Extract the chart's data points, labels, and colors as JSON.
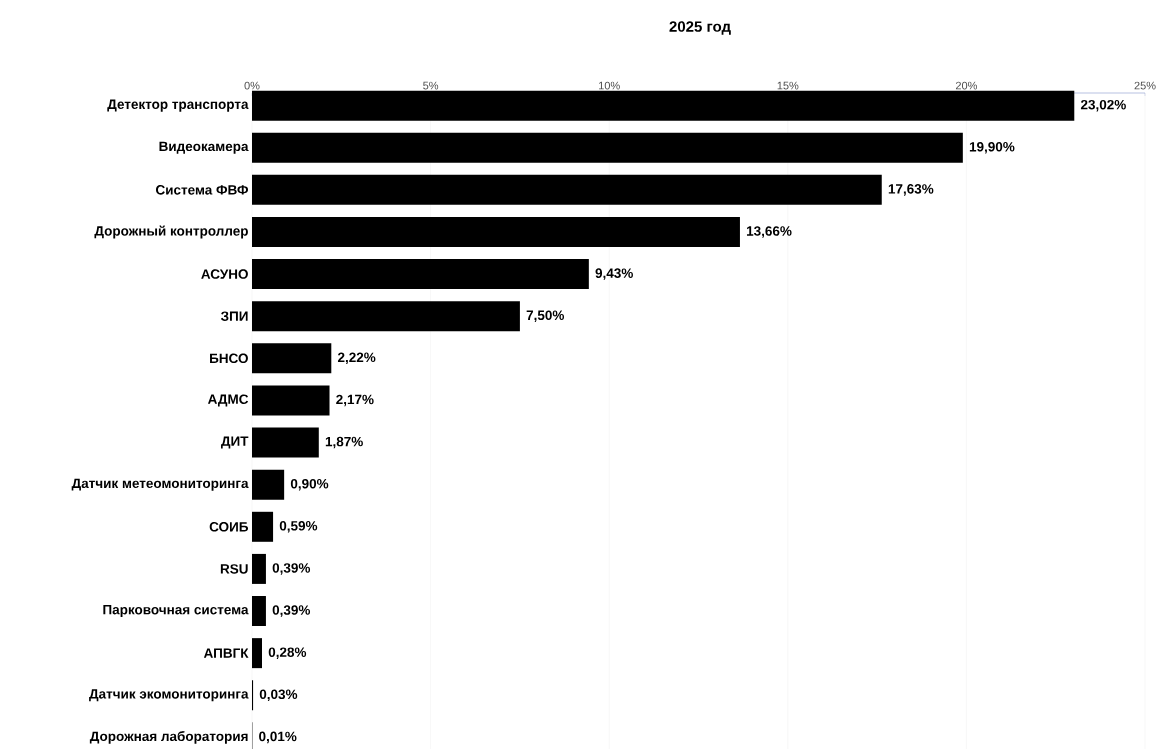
{
  "chart_data": {
    "type": "bar",
    "orientation": "horizontal",
    "title": "2025 год",
    "categories": [
      "Детектор транспорта",
      "Видеокамера",
      "Система ФВФ",
      "Дорожный контроллер",
      "АСУНО",
      "ЗПИ",
      "БНСО",
      "АДМС",
      "ДИТ",
      "Датчик метеомониторинга",
      "СОИБ",
      "RSU",
      "Парковочная система",
      "АПВГК",
      "Датчик экомониторинга",
      "Дорожная лаборатория"
    ],
    "values": [
      23.02,
      19.9,
      17.63,
      13.66,
      9.43,
      7.5,
      2.22,
      2.17,
      1.87,
      0.9,
      0.59,
      0.39,
      0.39,
      0.28,
      0.03,
      0.01
    ],
    "value_labels": [
      "23,02%",
      "19,90%",
      "17,63%",
      "13,66%",
      "9,43%",
      "7,50%",
      "2,22%",
      "2,17%",
      "1,87%",
      "0,90%",
      "0,59%",
      "0,39%",
      "0,39%",
      "0,28%",
      "0,03%",
      "0,01%"
    ],
    "color": "#000000",
    "xlim": [
      0,
      25
    ],
    "xticks": [
      {
        "value": 0,
        "label": "0%"
      },
      {
        "value": 5,
        "label": "5%"
      },
      {
        "value": 10,
        "label": "10%"
      },
      {
        "value": 15,
        "label": "15%"
      },
      {
        "value": 20,
        "label": "20%"
      },
      {
        "value": 25,
        "label": "25%"
      }
    ],
    "grid": "x"
  }
}
